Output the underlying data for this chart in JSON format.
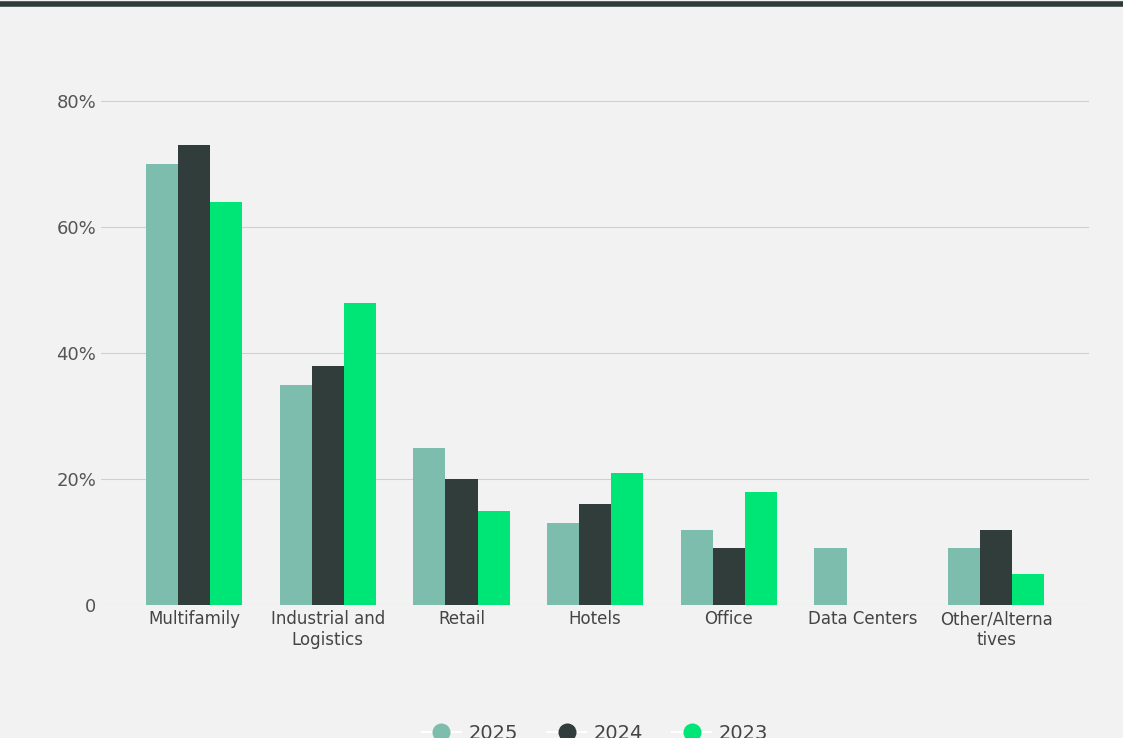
{
  "categories": [
    "Multifamily",
    "Industrial and\nLogistics",
    "Retail",
    "Hotels",
    "Office",
    "Data Centers",
    "Other/Alterna\ntives"
  ],
  "series": {
    "2025": [
      70,
      35,
      25,
      13,
      12,
      9,
      9
    ],
    "2024": [
      73,
      38,
      20,
      16,
      9,
      0,
      12
    ],
    "2023": [
      64,
      48,
      15,
      21,
      18,
      0,
      5
    ]
  },
  "colors": {
    "2025": "#7dbdad",
    "2024": "#303d3a",
    "2023": "#00e676"
  },
  "ylim": [
    0,
    82
  ],
  "yticks": [
    0,
    20,
    40,
    60,
    80
  ],
  "ytick_labels": [
    "0",
    "20%",
    "40%",
    "60%",
    "80%"
  ],
  "background_color": "#f2f2f2",
  "plot_bg_color": "#f2f2f2",
  "grid_color": "#d0d0d0",
  "top_border_color": "#2e3b38",
  "bar_width": 0.24,
  "years": [
    "2025",
    "2024",
    "2023"
  ]
}
